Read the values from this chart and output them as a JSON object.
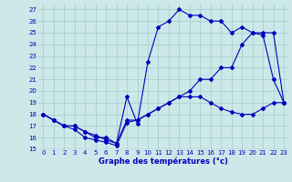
{
  "title": "Graphe des températures (°c)",
  "background_color": "#cce8e8",
  "grid_color": "#aacfcf",
  "line_color": "#0000bb",
  "xlim": [
    -0.5,
    23.5
  ],
  "ylim": [
    15,
    27.5
  ],
  "yticks": [
    15,
    16,
    17,
    18,
    19,
    20,
    21,
    22,
    23,
    24,
    25,
    26,
    27
  ],
  "xticks": [
    0,
    1,
    2,
    3,
    4,
    5,
    6,
    7,
    8,
    9,
    10,
    11,
    12,
    13,
    14,
    15,
    16,
    17,
    18,
    19,
    20,
    21,
    22,
    23
  ],
  "line1_x": [
    0,
    1,
    2,
    3,
    4,
    5,
    6,
    7,
    8,
    9,
    10,
    11,
    12,
    13,
    14,
    15,
    16,
    17,
    18,
    19,
    20,
    21,
    22,
    23
  ],
  "line1_y": [
    18,
    17.5,
    17,
    16.7,
    16,
    15.8,
    15.6,
    15.3,
    17.3,
    17.5,
    18,
    18.5,
    19,
    19.5,
    19.5,
    19.5,
    19,
    18.5,
    18.2,
    18,
    18,
    18.5,
    19,
    19
  ],
  "line2_x": [
    0,
    1,
    2,
    3,
    4,
    5,
    6,
    7,
    8,
    9,
    10,
    11,
    12,
    13,
    14,
    15,
    16,
    17,
    18,
    19,
    20,
    21,
    22,
    23
  ],
  "line2_y": [
    18,
    17.5,
    17,
    17,
    16.5,
    16,
    16,
    15.5,
    19.5,
    17.2,
    22.5,
    25.5,
    26,
    27,
    26.5,
    26.5,
    26,
    26,
    25,
    25.5,
    25,
    24.8,
    21,
    19
  ],
  "line3_x": [
    0,
    1,
    2,
    3,
    4,
    5,
    6,
    7,
    8,
    9,
    10,
    11,
    12,
    13,
    14,
    15,
    16,
    17,
    18,
    19,
    20,
    21,
    22,
    23
  ],
  "line3_y": [
    18,
    17.5,
    17,
    17,
    16.5,
    16.2,
    15.8,
    15.5,
    17.5,
    17.5,
    18,
    18.5,
    19,
    19.5,
    20,
    21,
    21,
    22,
    22,
    24,
    25,
    25,
    25,
    19
  ]
}
